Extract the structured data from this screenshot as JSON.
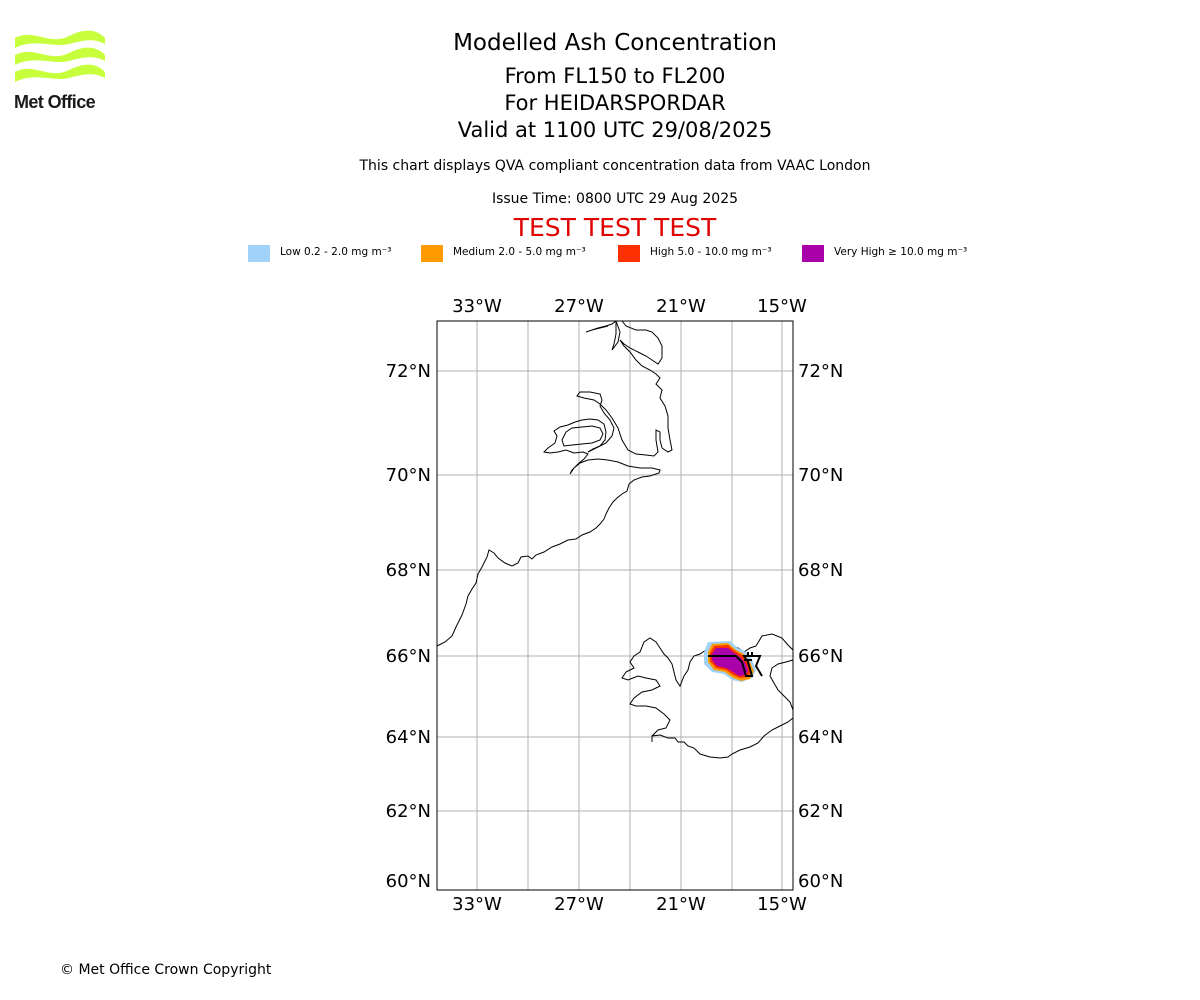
{
  "logo": {
    "name": "Met Office",
    "color": "#c8ff3c"
  },
  "title": "Modelled Ash Concentration",
  "subtitle_lines": [
    "From FL150 to FL200",
    "For HEIDARSPORDAR",
    "Valid at 1100 UTC 29/08/2025"
  ],
  "compliance_note": "This chart displays QVA compliant concentration data from VAAC London",
  "issue_time": "Issue Time: 0800 UTC 29 Aug 2025",
  "test_banner": "TEST TEST TEST",
  "legend": [
    {
      "label": "Low 0.2 - 2.0 mg m⁻³",
      "color": "#a0d2fa"
    },
    {
      "label": "Medium 2.0 - 5.0 mg m⁻³",
      "color": "#ff9a00"
    },
    {
      "label": "High 5.0 - 10.0 mg m⁻³",
      "color": "#ff3000"
    },
    {
      "label": "Very High ≥ 10.0 mg m⁻³",
      "color": "#aa00aa"
    }
  ],
  "map": {
    "lon_ticks": [
      "33°W",
      "27°W",
      "21°W",
      "15°W"
    ],
    "lat_ticks": [
      "72°N",
      "70°N",
      "68°N",
      "66°N",
      "64°N",
      "62°N",
      "60°N"
    ],
    "volcano_symbol": "volcano-marker",
    "ash_colors": {
      "low": "#a0d2fa",
      "medium": "#ff9a00",
      "high": "#ff3000",
      "very_high": "#aa00aa"
    }
  },
  "copyright": "© Met Office Crown Copyright"
}
